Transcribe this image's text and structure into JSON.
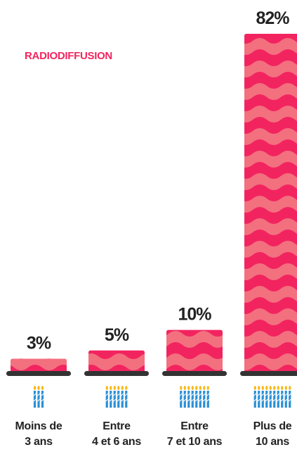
{
  "chart_data": {
    "type": "bar",
    "title": "RADIODIFFUSION",
    "categories": [
      "Moins de\n3 ans",
      "Entre\n4 et 6 ans",
      "Entre\n7 et 10 ans",
      "Plus de\n10 ans"
    ],
    "values": [
      3,
      5,
      10,
      82
    ],
    "value_labels": [
      "3%",
      "5%",
      "10%",
      "82%"
    ],
    "color": "#f2245f"
  }
}
